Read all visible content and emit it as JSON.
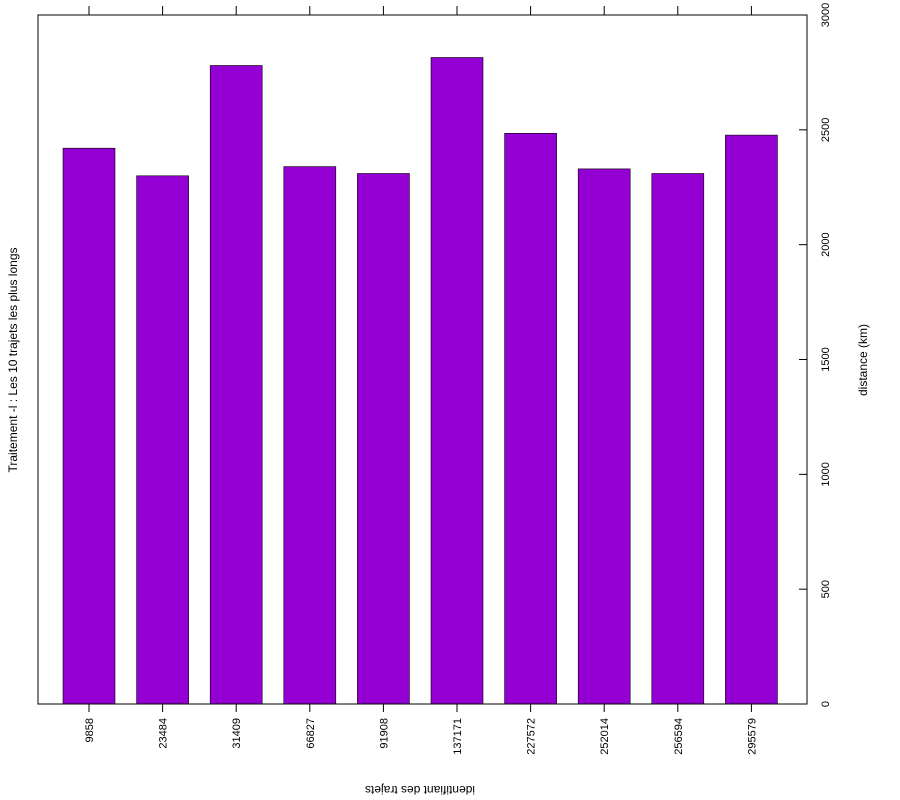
{
  "chart_data": {
    "type": "bar",
    "title": "Traitement -l : Les 10 trajets les plus longs",
    "xlabel": "identifiant des trajets",
    "ylabel": "distance (km)",
    "categories": [
      "9858",
      "23484",
      "31409",
      "66827",
      "91908",
      "137171",
      "227572",
      "252014",
      "256594",
      "295579"
    ],
    "values": [
      2420,
      2300,
      2780,
      2340,
      2310,
      2815,
      2485,
      2330,
      2310,
      2477
    ],
    "ylim": [
      0,
      3000
    ],
    "yticks": [
      0,
      500,
      1000,
      1500,
      2000,
      2500,
      3000
    ],
    "ytick_labels": [
      "0",
      "500",
      "1000",
      "1500",
      "2000",
      "2500",
      "3000"
    ],
    "grid": false,
    "bar_color": "#9400d3",
    "orientation": "rotated",
    "y_axis_side": "right"
  }
}
